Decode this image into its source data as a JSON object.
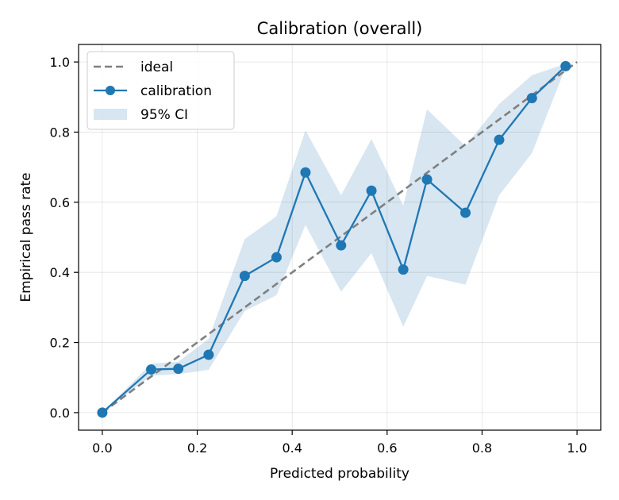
{
  "chart_data": {
    "type": "line",
    "title": "Calibration (overall)",
    "xlabel": "Predicted probability",
    "ylabel": "Empirical pass rate",
    "xlim": [
      -0.05,
      1.05
    ],
    "ylim": [
      -0.05,
      1.05
    ],
    "xticks": [
      "0.0",
      "0.2",
      "0.4",
      "0.6",
      "0.8",
      "1.0"
    ],
    "yticks": [
      "0.0",
      "0.2",
      "0.4",
      "0.6",
      "0.8",
      "1.0"
    ],
    "grid": true,
    "legend_position": "upper-left",
    "series": [
      {
        "name": "ideal",
        "kind": "dashed-line",
        "color": "#7f7f7f",
        "x": [
          0.0,
          1.0
        ],
        "y": [
          0.0,
          1.0
        ]
      },
      {
        "name": "calibration",
        "kind": "line-markers",
        "color": "#1f77b4",
        "x": [
          0.0,
          0.103,
          0.16,
          0.224,
          0.3,
          0.367,
          0.428,
          0.503,
          0.567,
          0.634,
          0.684,
          0.765,
          0.836,
          0.905,
          0.976
        ],
        "y": [
          0.0,
          0.123,
          0.125,
          0.165,
          0.39,
          0.443,
          0.685,
          0.477,
          0.633,
          0.408,
          0.665,
          0.57,
          0.778,
          0.897,
          0.988
        ]
      },
      {
        "name": "95% CI",
        "kind": "band",
        "color": "#1f77b4",
        "x": [
          0.0,
          0.103,
          0.16,
          0.224,
          0.3,
          0.367,
          0.428,
          0.503,
          0.567,
          0.634,
          0.684,
          0.765,
          0.836,
          0.905,
          0.976
        ],
        "lower": [
          0.0,
          0.105,
          0.11,
          0.122,
          0.29,
          0.335,
          0.535,
          0.345,
          0.455,
          0.245,
          0.39,
          0.365,
          0.62,
          0.74,
          0.985
        ],
        "upper": [
          0.0,
          0.14,
          0.145,
          0.21,
          0.495,
          0.56,
          0.805,
          0.62,
          0.78,
          0.59,
          0.865,
          0.76,
          0.88,
          0.962,
          0.995
        ]
      }
    ]
  }
}
